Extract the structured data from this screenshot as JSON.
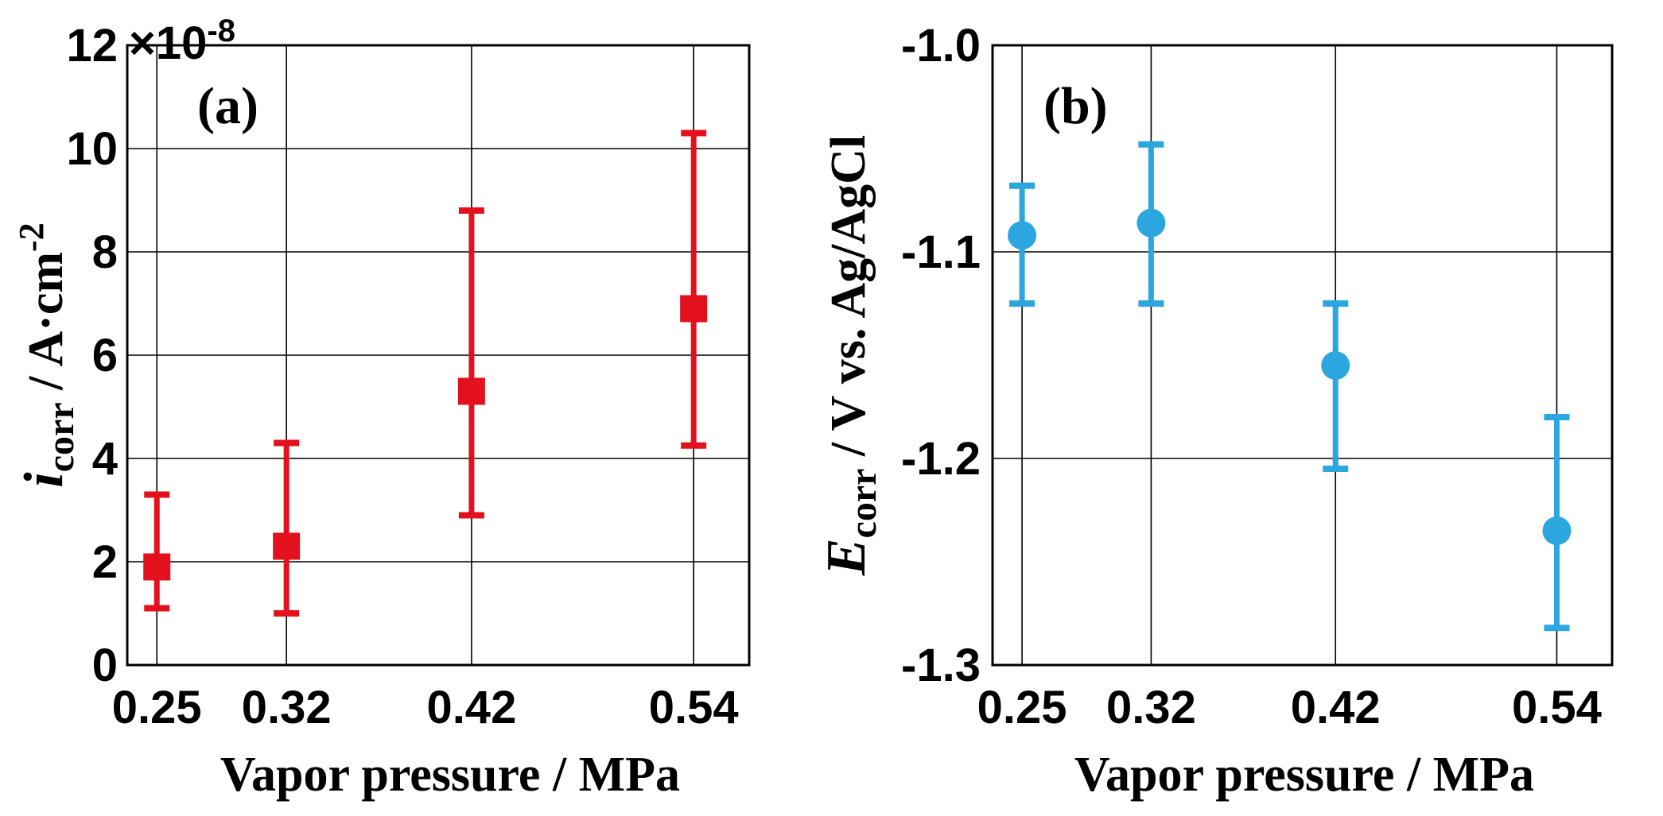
{
  "chart_data": [
    {
      "type": "scatter",
      "panel_label": "(a)",
      "exponent_label": "×10",
      "exponent_power": "-8",
      "xlabel": "Vapor pressure / MPa",
      "ylabel_main": "i",
      "ylabel_sub": "corr",
      "ylabel_rest": " / A·cm",
      "ylabel_sup": "-2",
      "x": [
        0.25,
        0.32,
        0.42,
        0.54
      ],
      "xticks": [
        "0.25",
        "0.32",
        "0.42",
        "0.54"
      ],
      "xlim": [
        0.234,
        0.57
      ],
      "ylim": [
        0,
        12
      ],
      "yticks": [
        0,
        2,
        4,
        6,
        8,
        10,
        12
      ],
      "ytick_labels": [
        "0",
        "2",
        "4",
        "6",
        "8",
        "10",
        "12"
      ],
      "grid": true,
      "marker": "square",
      "color": "#e3101e",
      "values": [
        1.9,
        2.3,
        5.3,
        6.9
      ],
      "err_low": [
        1.1,
        1.0,
        2.9,
        4.25
      ],
      "err_high": [
        3.3,
        4.3,
        8.8,
        10.3
      ]
    },
    {
      "type": "scatter",
      "panel_label": "(b)",
      "xlabel": "Vapor pressure / MPa",
      "ylabel_main": "E",
      "ylabel_sub": "corr",
      "ylabel_rest": " / V vs. Ag/AgCl",
      "x": [
        0.25,
        0.32,
        0.42,
        0.54
      ],
      "xticks": [
        "0.25",
        "0.32",
        "0.42",
        "0.54"
      ],
      "xlim": [
        0.234,
        0.57
      ],
      "ylim": [
        -1.3,
        -1.0
      ],
      "yticks": [
        -1.3,
        -1.2,
        -1.1,
        -1.0
      ],
      "ytick_labels": [
        "-1.3",
        "-1.2",
        "-1.1",
        "-1.0"
      ],
      "grid": true,
      "marker": "circle",
      "color": "#2ba6de",
      "values": [
        -1.092,
        -1.086,
        -1.155,
        -1.235
      ],
      "err_low": [
        -1.125,
        -1.125,
        -1.205,
        -1.282
      ],
      "err_high": [
        -1.068,
        -1.048,
        -1.125,
        -1.18
      ]
    }
  ]
}
